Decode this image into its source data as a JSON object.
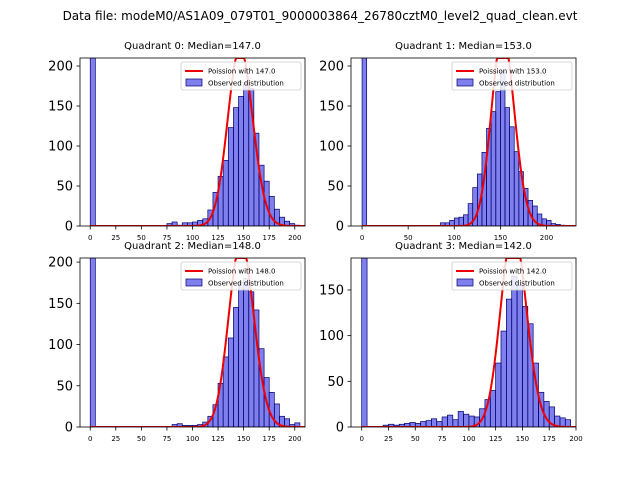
{
  "figure_title": "Data file: modeM0/AS1A09_079T01_9000003864_26780cztM0_level2_quad_clean.evt",
  "chart_data": [
    {
      "type": "bar",
      "title": "Quadrant 0: Median=147.0",
      "median": 147.0,
      "bin_width": 5,
      "xlim": [
        -10,
        210
      ],
      "ylim": [
        0,
        210
      ],
      "xticks": [
        0,
        25,
        50,
        75,
        100,
        125,
        150,
        175,
        200
      ],
      "yticks": [
        0,
        50,
        100,
        150,
        200
      ],
      "legend_position": "top-right",
      "legend": [
        "Poission with 147.0",
        "Observed distribution"
      ],
      "bins": [
        [
          0,
          210
        ],
        [
          75,
          3
        ],
        [
          80,
          5
        ],
        [
          85,
          1
        ],
        [
          90,
          4
        ],
        [
          95,
          4
        ],
        [
          100,
          5
        ],
        [
          105,
          7
        ],
        [
          110,
          9
        ],
        [
          115,
          20
        ],
        [
          120,
          42
        ],
        [
          125,
          62
        ],
        [
          130,
          82
        ],
        [
          135,
          123
        ],
        [
          140,
          148
        ],
        [
          145,
          162
        ],
        [
          150,
          178
        ],
        [
          155,
          172
        ],
        [
          160,
          116
        ],
        [
          165,
          76
        ],
        [
          170,
          56
        ],
        [
          175,
          37
        ],
        [
          180,
          21
        ],
        [
          185,
          11
        ],
        [
          190,
          6
        ],
        [
          195,
          3
        ],
        [
          200,
          1
        ]
      ]
    },
    {
      "type": "bar",
      "title": "Quadrant 1: Median=153.0",
      "median": 153.0,
      "bin_width": 5,
      "xlim": [
        -12,
        232
      ],
      "ylim": [
        0,
        210
      ],
      "xticks": [
        0,
        50,
        100,
        150,
        200
      ],
      "yticks": [
        0,
        50,
        100,
        150,
        200
      ],
      "legend_position": "top-right",
      "legend": [
        "Poission with 153.0",
        "Observed distribution"
      ],
      "bins": [
        [
          0,
          210
        ],
        [
          85,
          4
        ],
        [
          90,
          4
        ],
        [
          95,
          7
        ],
        [
          100,
          10
        ],
        [
          105,
          11
        ],
        [
          110,
          14
        ],
        [
          115,
          28
        ],
        [
          120,
          48
        ],
        [
          125,
          65
        ],
        [
          130,
          92
        ],
        [
          135,
          122
        ],
        [
          140,
          143
        ],
        [
          145,
          168
        ],
        [
          150,
          193
        ],
        [
          155,
          148
        ],
        [
          160,
          124
        ],
        [
          165,
          93
        ],
        [
          170,
          68
        ],
        [
          175,
          47
        ],
        [
          180,
          32
        ],
        [
          185,
          25
        ],
        [
          190,
          15
        ],
        [
          195,
          9
        ],
        [
          200,
          7
        ],
        [
          205,
          3
        ],
        [
          210,
          2
        ],
        [
          215,
          1
        ]
      ]
    },
    {
      "type": "bar",
      "title": "Quadrant 2: Median=148.0",
      "median": 148.0,
      "bin_width": 5,
      "xlim": [
        -10,
        210
      ],
      "ylim": [
        0,
        205
      ],
      "xticks": [
        0,
        25,
        50,
        75,
        100,
        125,
        150,
        175,
        200
      ],
      "yticks": [
        0,
        50,
        100,
        150,
        200
      ],
      "legend_position": "top-right",
      "legend": [
        "Poission with 148.0",
        "Observed distribution"
      ],
      "bins": [
        [
          0,
          205
        ],
        [
          80,
          3
        ],
        [
          85,
          4
        ],
        [
          90,
          2
        ],
        [
          95,
          2
        ],
        [
          100,
          2
        ],
        [
          105,
          3
        ],
        [
          110,
          6
        ],
        [
          115,
          13
        ],
        [
          120,
          27
        ],
        [
          125,
          53
        ],
        [
          130,
          85
        ],
        [
          135,
          108
        ],
        [
          140,
          145
        ],
        [
          145,
          175
        ],
        [
          150,
          180
        ],
        [
          155,
          164
        ],
        [
          160,
          142
        ],
        [
          165,
          95
        ],
        [
          170,
          60
        ],
        [
          175,
          42
        ],
        [
          180,
          28
        ],
        [
          185,
          13
        ],
        [
          190,
          10
        ],
        [
          195,
          3
        ],
        [
          200,
          5
        ]
      ]
    },
    {
      "type": "bar",
      "title": "Quadrant 3: Median=142.0",
      "median": 142.0,
      "bin_width": 5,
      "xlim": [
        -10,
        200
      ],
      "ylim": [
        0,
        185
      ],
      "xticks": [
        0,
        25,
        50,
        75,
        100,
        125,
        150,
        175,
        200
      ],
      "yticks": [
        0,
        50,
        100,
        150
      ],
      "legend_position": "top-right",
      "legend": [
        "Poission with 142.0",
        "Observed distribution"
      ],
      "bins": [
        [
          0,
          185
        ],
        [
          20,
          2
        ],
        [
          25,
          3
        ],
        [
          30,
          2
        ],
        [
          35,
          3
        ],
        [
          40,
          4
        ],
        [
          45,
          5
        ],
        [
          50,
          4
        ],
        [
          55,
          6
        ],
        [
          60,
          7
        ],
        [
          65,
          9
        ],
        [
          70,
          6
        ],
        [
          75,
          11
        ],
        [
          80,
          13
        ],
        [
          85,
          8
        ],
        [
          90,
          17
        ],
        [
          95,
          14
        ],
        [
          100,
          12
        ],
        [
          105,
          11
        ],
        [
          110,
          20
        ],
        [
          115,
          30
        ],
        [
          120,
          40
        ],
        [
          125,
          70
        ],
        [
          130,
          105
        ],
        [
          135,
          140
        ],
        [
          140,
          165
        ],
        [
          145,
          155
        ],
        [
          150,
          132
        ],
        [
          155,
          113
        ],
        [
          160,
          70
        ],
        [
          165,
          38
        ],
        [
          170,
          28
        ],
        [
          175,
          22
        ],
        [
          180,
          12
        ],
        [
          185,
          10
        ],
        [
          190,
          8
        ]
      ]
    }
  ]
}
